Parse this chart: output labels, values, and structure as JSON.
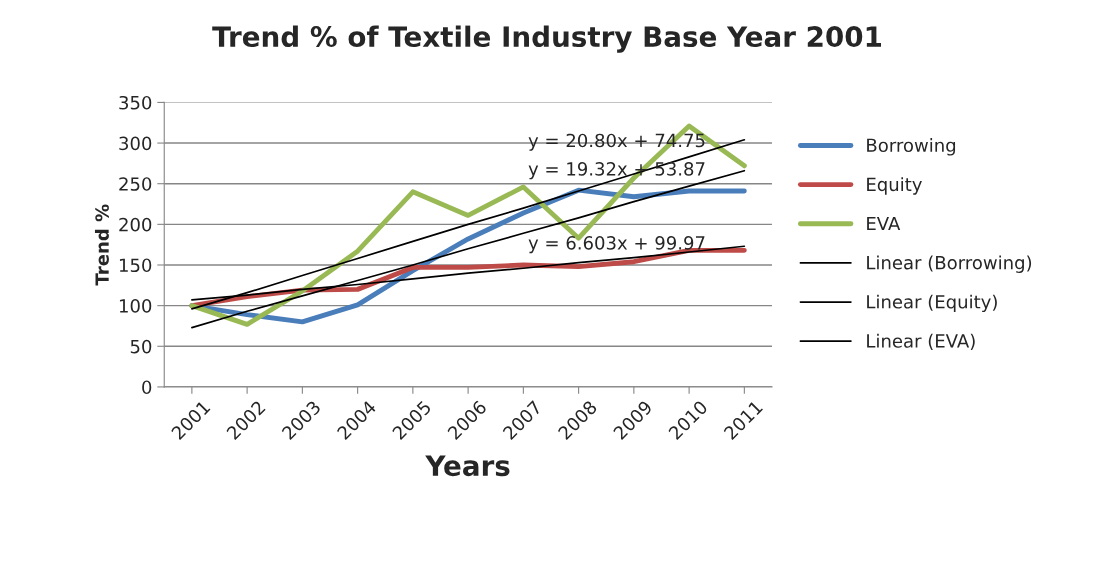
{
  "chart_data": {
    "type": "line",
    "title": "Trend % of Textile Industry Base Year 2001",
    "xlabel": "Years",
    "ylabel": "Trend %",
    "categories": [
      "2001",
      "2002",
      "2003",
      "2004",
      "2005",
      "2006",
      "2007",
      "2008",
      "2009",
      "2010",
      "2011"
    ],
    "series": [
      {
        "name": "Borrowing",
        "color": "#4a7ebb",
        "values": [
          100,
          89,
          80,
          101,
          143,
          182,
          214,
          242,
          234,
          241,
          241
        ]
      },
      {
        "name": "Equity",
        "color": "#be4b48",
        "values": [
          100,
          111,
          119,
          120,
          147,
          147,
          150,
          148,
          154,
          168,
          168
        ]
      },
      {
        "name": "EVA",
        "color": "#98b954",
        "values": [
          100,
          77,
          118,
          167,
          240,
          211,
          246,
          183,
          257,
          321,
          272
        ]
      },
      {
        "name": "Linear (Borrowing)",
        "color": "#000000",
        "values": [
          73,
          93,
          112,
          131,
          150,
          170,
          189,
          208,
          228,
          247,
          266
        ]
      },
      {
        "name": "Linear (Equity)",
        "color": "#000000",
        "values": [
          107,
          113,
          120,
          126,
          133,
          140,
          146,
          153,
          159,
          166,
          173
        ]
      },
      {
        "name": "Linear (EVA)",
        "color": "#000000",
        "values": [
          96,
          116,
          137,
          158,
          179,
          200,
          220,
          241,
          262,
          283,
          304
        ]
      }
    ],
    "annotations": [
      "y = 20.80x + 74.75",
      "y = 19.32x + 53.87",
      "y = 6.603x + 99.97"
    ],
    "ylim": [
      0,
      350
    ],
    "yticks": [
      0,
      50,
      100,
      150,
      200,
      250,
      300,
      350
    ],
    "grid": "y",
    "legend": "right",
    "marker": "none",
    "line_style": "solid"
  }
}
